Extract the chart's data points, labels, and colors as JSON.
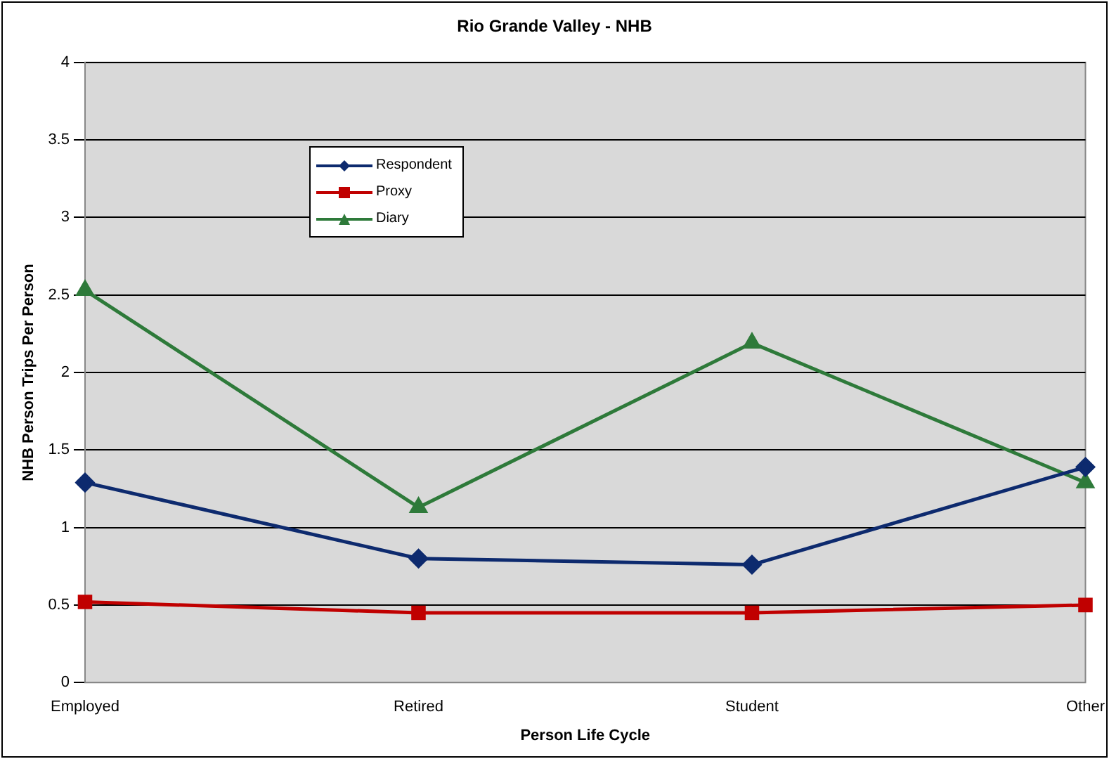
{
  "chart_data": {
    "type": "line",
    "title": "Rio Grande Valley - NHB",
    "xlabel": "Person Life Cycle",
    "ylabel": "NHB Person Trips Per Person",
    "categories": [
      "Employed",
      "Retired",
      "Student",
      "Other"
    ],
    "series": [
      {
        "name": "Respondent",
        "color": "#0d2a6e",
        "marker": "diamond",
        "values": [
          1.29,
          0.8,
          0.76,
          1.39
        ]
      },
      {
        "name": "Proxy",
        "color": "#c00000",
        "marker": "square",
        "values": [
          0.52,
          0.45,
          0.45,
          0.5
        ]
      },
      {
        "name": "Diary",
        "color": "#2e7a3a",
        "marker": "triangle",
        "values": [
          2.53,
          1.13,
          2.19,
          1.29
        ]
      }
    ],
    "ylim": [
      0,
      4
    ],
    "yticks": [
      0,
      0.5,
      1,
      1.5,
      2,
      2.5,
      3,
      3.5,
      4
    ],
    "grid": "y",
    "legend": "top left",
    "line_style": "solid"
  }
}
